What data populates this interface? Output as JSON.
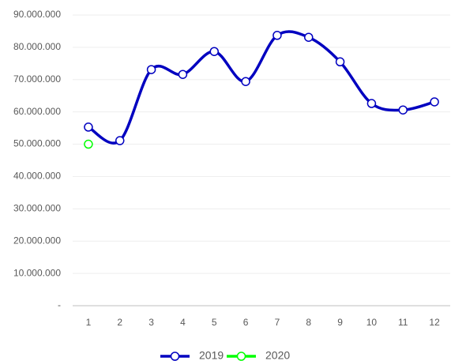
{
  "chart_data": {
    "type": "line",
    "categories": [
      "1",
      "2",
      "3",
      "4",
      "5",
      "6",
      "7",
      "8",
      "9",
      "10",
      "11",
      "12"
    ],
    "series": [
      {
        "name": "2019",
        "color": "#0000c0",
        "values": [
          55300000,
          51100000,
          73100000,
          71600000,
          78700000,
          69400000,
          83700000,
          83100000,
          75500000,
          62600000,
          60600000,
          63100000
        ]
      },
      {
        "name": "2020",
        "color": "#00ff00",
        "values": [
          50000000,
          null,
          null,
          null,
          null,
          null,
          null,
          null,
          null,
          null,
          null,
          null
        ]
      }
    ],
    "ylim": [
      0,
      90000000
    ],
    "yticks": [
      {
        "value": 0,
        "label": "-"
      },
      {
        "value": 10000000,
        "label": "10.000.000"
      },
      {
        "value": 20000000,
        "label": "20.000.000"
      },
      {
        "value": 30000000,
        "label": "30.000.000"
      },
      {
        "value": 40000000,
        "label": "40.000.000"
      },
      {
        "value": 50000000,
        "label": "50.000.000"
      },
      {
        "value": 60000000,
        "label": "60.000.000"
      },
      {
        "value": 70000000,
        "label": "70.000.000"
      },
      {
        "value": 80000000,
        "label": "80.000.000"
      },
      {
        "value": 90000000,
        "label": "90.000.000"
      }
    ],
    "grid": true,
    "smooth": true,
    "legend": "bottom"
  }
}
